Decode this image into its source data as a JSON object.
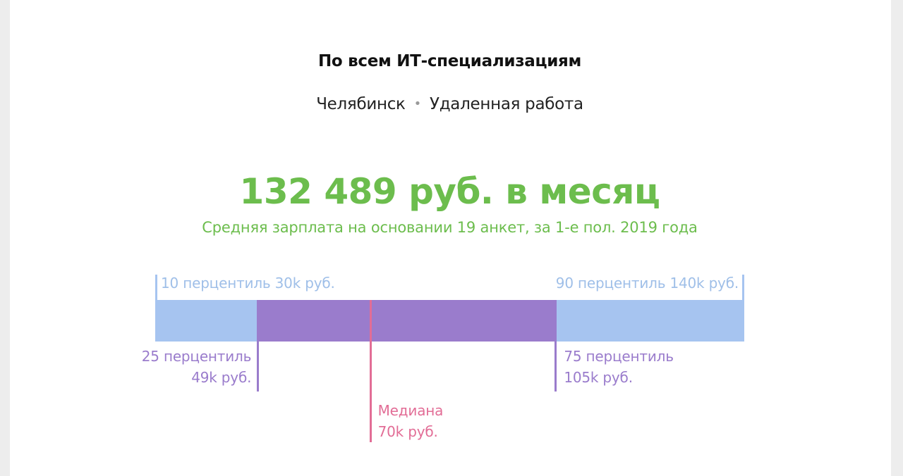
{
  "header": {
    "title": "По всем ИТ-специализациям",
    "city": "Челябинск",
    "separator": "•",
    "work_type": "Удаленная работа"
  },
  "summary": {
    "salary": "132 489 руб. в месяц",
    "description": "Средняя зарплата на основании 19 анкет, за 1-е пол. 2019 года"
  },
  "chart_data": {
    "type": "percentile-range",
    "unit": "k руб.",
    "p10": 30,
    "p25": 49,
    "median": 70,
    "p75": 105,
    "p90": 140,
    "labels": {
      "p10": "10 перцентиль 30k руб.",
      "p90": "90 перцентиль 140k руб.",
      "p25_line1": "25 перцентиль",
      "p25_line2": "49k руб.",
      "p75_line1": "75 перцентиль",
      "p75_line2": "105k руб.",
      "median_line1": "Медиана",
      "median_line2": "70k руб."
    },
    "colors": {
      "outer_range": "#a6c4f0",
      "inner_range": "#9a7ccc",
      "median": "#e26d96",
      "salary": "#6cbd4d"
    }
  }
}
